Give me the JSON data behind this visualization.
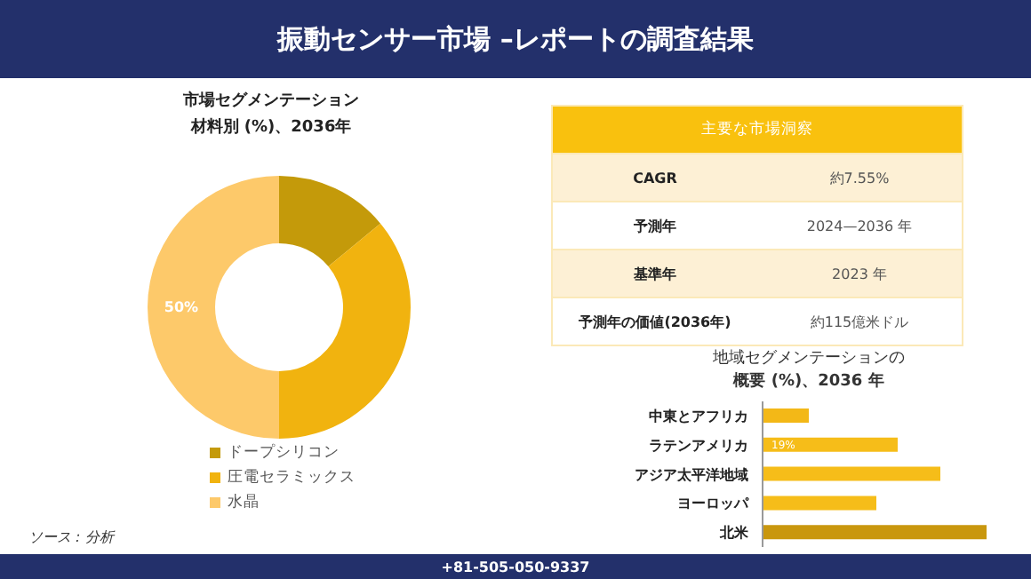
{
  "chart_data": [
    {
      "type": "other",
      "title": "振動センサー市場 –レポートの調査結果",
      "annotations": [
        "ソース : 分析",
        "+81-505-050-9337"
      ]
    },
    {
      "type": "donut",
      "title": "市場セグメンテーション",
      "subtitle": "材料別 (%)、2036年",
      "categories": [
        "ドープシリコン",
        "圧電セラミックス",
        "水晶"
      ],
      "values": [
        14,
        36,
        50
      ],
      "colors": [
        "#c49a0a",
        "#f1b30f",
        "#fdc96a"
      ],
      "value_labels": [
        null,
        null,
        "50%"
      ],
      "legend": "bottom"
    },
    {
      "type": "other",
      "title": "主要な市場洞察",
      "annotations": [
        "CAGR",
        "約7.55%",
        "予測年",
        "2024—2036 年",
        "基準年",
        "2023 年",
        "予測年の価値(2036年)",
        "約115億米ドル"
      ]
    },
    {
      "type": "bar",
      "orientation": "horizontal",
      "tick_labels": "y",
      "title": "地域セグメンテーションの",
      "subtitle": "概要 (%)、2036 年",
      "categories": [
        "中東とアフリカ",
        "ラテンアメリカ",
        "アジア太平洋地域",
        "ヨーロッパ",
        "北米"
      ],
      "values": [
        6.5,
        19,
        25,
        16,
        31.5
      ],
      "colors": [
        "#f3b817",
        "#f6bd19",
        "#f6bd19",
        "#f6bd19",
        "#c9970e"
      ],
      "value_labels": [
        null,
        "19%",
        null,
        null,
        null
      ]
    }
  ]
}
